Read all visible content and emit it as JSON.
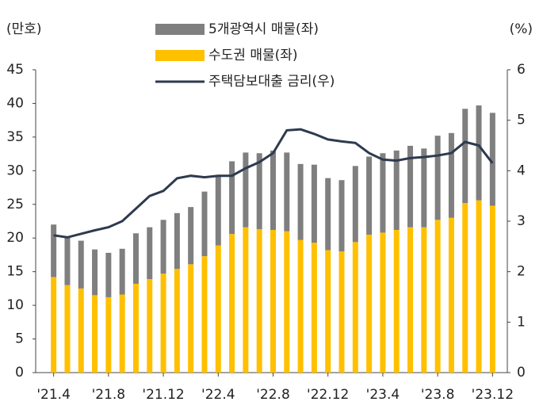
{
  "chart_data": {
    "type": "bar_line",
    "y_unit": "(만호)",
    "y2_unit": "(%)",
    "categories": [
      "'21.4",
      null,
      null,
      null,
      "'21.8",
      null,
      null,
      null,
      "'21.12",
      null,
      null,
      null,
      "'22.4",
      null,
      null,
      null,
      "'22.8",
      null,
      null,
      null,
      "'22.12",
      null,
      null,
      null,
      "'23.4",
      null,
      null,
      null,
      "'23.8",
      null,
      null,
      null,
      "'23.12"
    ],
    "series": [
      {
        "name": "수도권 매물(좌)",
        "color": "#ffc000",
        "stack": true,
        "values": [
          14.2,
          13,
          12.5,
          11.5,
          11.2,
          11.6,
          13.2,
          13.9,
          14.7,
          15.4,
          16.1,
          17.3,
          18.9,
          20.6,
          21.6,
          21.3,
          21.2,
          21.0,
          19.7,
          19.3,
          18.2,
          18.0,
          19.4,
          20.5,
          20.8,
          21.2,
          21.6,
          21.6,
          22.7,
          23.0,
          25.2,
          25.6,
          24.8
        ]
      },
      {
        "name": "5개광역시 매물(좌)",
        "color": "#7f7f7f",
        "stack": true,
        "values": [
          7.8,
          7.2,
          7.1,
          6.8,
          6.6,
          6.8,
          7.5,
          7.7,
          8.0,
          8.3,
          8.5,
          9.6,
          10.2,
          10.8,
          11.1,
          11.3,
          11.8,
          11.7,
          11.3,
          11.6,
          10.7,
          10.6,
          11.3,
          11.6,
          11.8,
          11.8,
          12.1,
          11.7,
          12.5,
          12.6,
          14.0,
          14.1,
          13.8
        ]
      },
      {
        "name": "주택담보대출 금리(우)",
        "color": "#2e3a4e",
        "axis": "y2",
        "line": true,
        "values": [
          2.72,
          2.68,
          2.75,
          2.82,
          2.88,
          3.0,
          3.25,
          3.5,
          3.6,
          3.85,
          3.9,
          3.87,
          3.9,
          3.9,
          4.05,
          4.17,
          4.35,
          4.8,
          4.82,
          4.73,
          4.62,
          4.58,
          4.55,
          4.35,
          4.22,
          4.2,
          4.25,
          4.27,
          4.3,
          4.35,
          4.57,
          4.5,
          4.15
        ]
      }
    ],
    "legend_order": [
      1,
      0,
      2
    ],
    "ylim": [
      0,
      45
    ],
    "yticks": [
      0,
      5,
      10,
      15,
      20,
      25,
      30,
      35,
      40,
      45
    ],
    "y2lim": [
      0,
      6
    ],
    "y2ticks": [
      0,
      1,
      2,
      3,
      4,
      5,
      6
    ]
  }
}
